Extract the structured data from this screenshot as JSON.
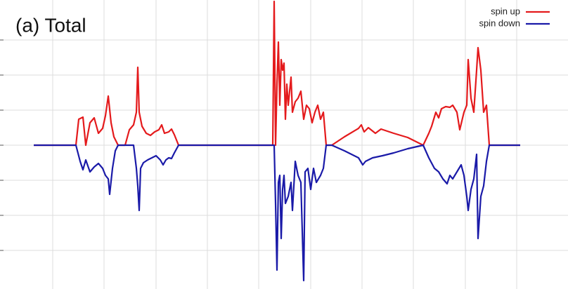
{
  "chart_data": {
    "type": "line",
    "title": "(a) Total",
    "xlim": [
      0,
      808
    ],
    "ylim": [
      -205,
      207
    ],
    "xticks": [
      75,
      148,
      222,
      295,
      368,
      442,
      515,
      588,
      662,
      735
    ],
    "yticks": [
      -150,
      -100,
      -50,
      0,
      50,
      100,
      150
    ],
    "grid": true,
    "legend": "upper right",
    "series": [
      {
        "name": "spin up",
        "color": "#e41a1c",
        "x": [
          48,
          108,
          112,
          118,
          122,
          128,
          134,
          140,
          146,
          150,
          154,
          158,
          162,
          168,
          178,
          184,
          190,
          194,
          196,
          198,
          202,
          208,
          214,
          220,
          226,
          230,
          234,
          240,
          244,
          248,
          254,
          388,
          390,
          392,
          394,
          396,
          398,
          400,
          402,
          404,
          406,
          408,
          410,
          414,
          416,
          420,
          424,
          428,
          432,
          436,
          440,
          444,
          448,
          452,
          456,
          460,
          464,
          472,
          490,
          510,
          514,
          518,
          524,
          534,
          542,
          560,
          580,
          602,
          610,
          614,
          620,
          624,
          628,
          634,
          640,
          644,
          650,
          654,
          660,
          664,
          666,
          670,
          674,
          678,
          680,
          684,
          688,
          692,
          696,
          740
        ],
        "values": [
          0,
          0,
          37,
          40,
          0,
          32,
          39,
          17,
          24,
          42,
          70,
          32,
          12,
          0,
          0,
          22,
          29,
          47,
          111,
          47,
          27,
          17,
          14,
          19,
          22,
          29,
          17,
          19,
          23,
          15,
          0,
          0,
          205,
          0,
          87,
          147,
          57,
          122,
          107,
          117,
          37,
          87,
          57,
          97,
          47,
          62,
          67,
          77,
          37,
          57,
          52,
          32,
          47,
          57,
          37,
          47,
          0,
          0,
          12,
          24,
          29,
          19,
          25,
          17,
          23,
          17,
          11,
          0,
          17,
          27,
          47,
          39,
          52,
          55,
          54,
          57,
          47,
          22,
          47,
          57,
          122,
          67,
          47,
          107,
          139,
          107,
          47,
          57,
          0,
          0
        ]
      },
      {
        "name": "spin down",
        "color": "#1a1aa8",
        "x": [
          48,
          108,
          114,
          118,
          122,
          128,
          134,
          140,
          146,
          150,
          154,
          156,
          160,
          164,
          168,
          190,
          194,
          196,
          198,
          200,
          204,
          210,
          216,
          222,
          228,
          232,
          236,
          240,
          244,
          248,
          254,
          390,
          392,
          394,
          396,
          398,
          400,
          402,
          404,
          406,
          410,
          414,
          416,
          420,
          424,
          428,
          432,
          434,
          438,
          442,
          446,
          450,
          456,
          460,
          464,
          472,
          490,
          510,
          516,
          520,
          530,
          544,
          560,
          580,
          602,
          610,
          618,
          624,
          630,
          636,
          640,
          644,
          650,
          656,
          660,
          664,
          666,
          670,
          674,
          678,
          680,
          684,
          688,
          692,
          696,
          740
        ],
        "values": [
          0,
          0,
          -23,
          -35,
          -21,
          -38,
          -31,
          -26,
          -33,
          -43,
          -48,
          -70,
          -33,
          -8,
          0,
          0,
          -33,
          -58,
          -93,
          -33,
          -25,
          -21,
          -18,
          -15,
          -21,
          -28,
          -21,
          -18,
          -19,
          -11,
          0,
          0,
          -83,
          -178,
          -53,
          -43,
          -133,
          -63,
          -43,
          -83,
          -73,
          -53,
          -93,
          -23,
          -43,
          -53,
          -193,
          -38,
          -33,
          -63,
          -33,
          -53,
          -43,
          -33,
          0,
          0,
          -8,
          -18,
          -28,
          -23,
          -18,
          -15,
          -11,
          -5,
          0,
          -18,
          -33,
          -38,
          -48,
          -55,
          -43,
          -48,
          -38,
          -28,
          -43,
          -73,
          -93,
          -63,
          -48,
          -13,
          -133,
          -73,
          -58,
          -23,
          0,
          0
        ]
      }
    ]
  }
}
